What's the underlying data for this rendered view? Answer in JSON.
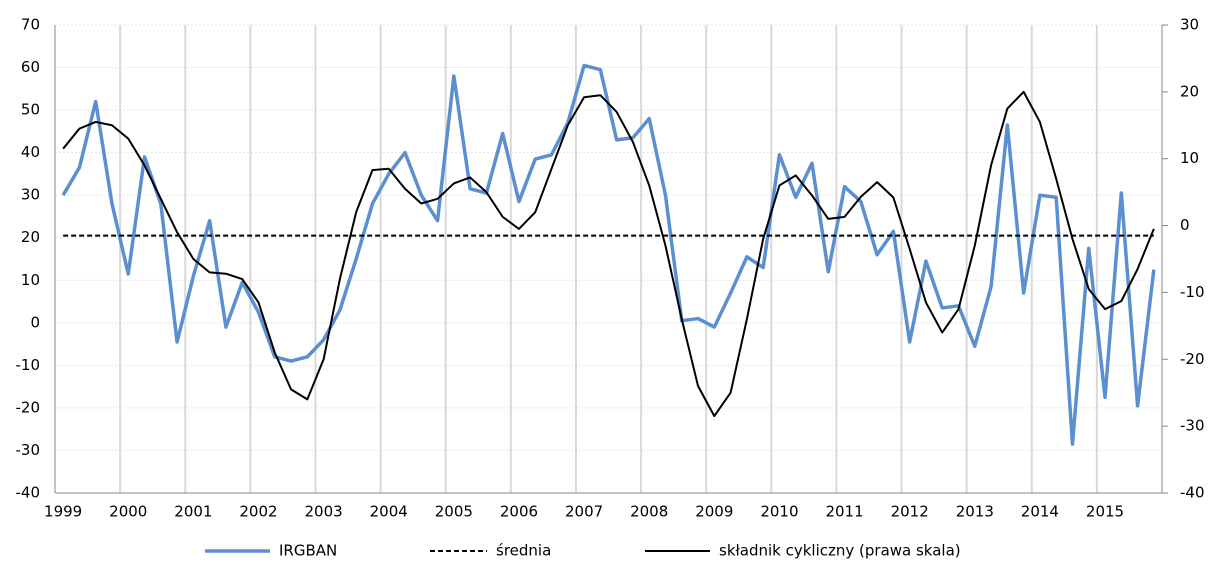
{
  "chart_data": {
    "type": "line",
    "categories": [
      "1999",
      null,
      null,
      null,
      "2000",
      null,
      null,
      null,
      "2001",
      null,
      null,
      null,
      "2002",
      null,
      null,
      null,
      "2003",
      null,
      null,
      null,
      "2004",
      null,
      null,
      null,
      "2005",
      null,
      null,
      null,
      "2006",
      null,
      null,
      null,
      "2007",
      null,
      null,
      null,
      "2008",
      null,
      null,
      null,
      "2009",
      null,
      null,
      null,
      "2010",
      null,
      null,
      null,
      "2011",
      null,
      null,
      null,
      "2012",
      null,
      null,
      null,
      "2013",
      null,
      null,
      null,
      "2014",
      null,
      null,
      null,
      "2015",
      null,
      null,
      null
    ],
    "series": [
      {
        "name": "IRGBAN",
        "color": "#5b8fd0",
        "values": [
          30,
          36.5,
          52,
          28,
          11.5,
          39,
          28,
          -4.5,
          11,
          24,
          -1,
          9.5,
          2.5,
          -8,
          -9,
          -8,
          -4,
          3,
          15,
          28,
          35,
          40,
          30,
          24,
          58,
          31.5,
          30.5,
          44.5,
          28.5,
          38.5,
          39.5,
          47,
          60.5,
          59.5,
          43,
          43.5,
          48,
          30,
          0.5,
          1,
          -1,
          7,
          15.5,
          13,
          39.5,
          29.5,
          37.5,
          12,
          32,
          28.5,
          16,
          21.5,
          -4.5,
          14.5,
          3.5,
          4,
          -5.5,
          8.5,
          46.5,
          7,
          30,
          29.5,
          -28.5,
          17.5,
          -17.5,
          30.5,
          -19.5,
          12.5
        ]
      },
      {
        "name": "średnia",
        "color": "#000000",
        "dash": true,
        "value": 20.5
      },
      {
        "name": "składnik cykliczny (prawa skala)",
        "color": "#000000",
        "axis": "y2",
        "values": [
          11.5,
          14.5,
          15.5,
          15,
          13,
          9,
          4,
          -1,
          -5,
          -7,
          -7.2,
          -8,
          -11.5,
          -19,
          -24.5,
          -26,
          -20,
          -8,
          2,
          8.3,
          8.5,
          5.5,
          3.3,
          4,
          6.3,
          7.2,
          5,
          1.3,
          -0.5,
          2,
          8.5,
          15,
          19.2,
          19.5,
          17,
          12.5,
          6,
          -3,
          -14,
          -24,
          -28.5,
          -25,
          -14,
          -2,
          6,
          7.5,
          4.5,
          1,
          1.3,
          4.3,
          6.5,
          4.2,
          -3.5,
          -11.5,
          -16,
          -12.5,
          -3,
          9,
          17.5,
          20,
          15.5,
          7,
          -2,
          -9.5,
          -12.5,
          -11.3,
          -6.5,
          -0.5
        ]
      }
    ],
    "ylim": [
      -40,
      70
    ],
    "yticks": [
      -40,
      -30,
      -20,
      -10,
      0,
      10,
      20,
      30,
      40,
      50,
      60,
      70
    ],
    "y2lim": [
      -40,
      30
    ],
    "y2ticks": [
      -40,
      -30,
      -20,
      -10,
      0,
      10,
      20,
      30
    ],
    "grid": true,
    "legend": "bottom"
  }
}
